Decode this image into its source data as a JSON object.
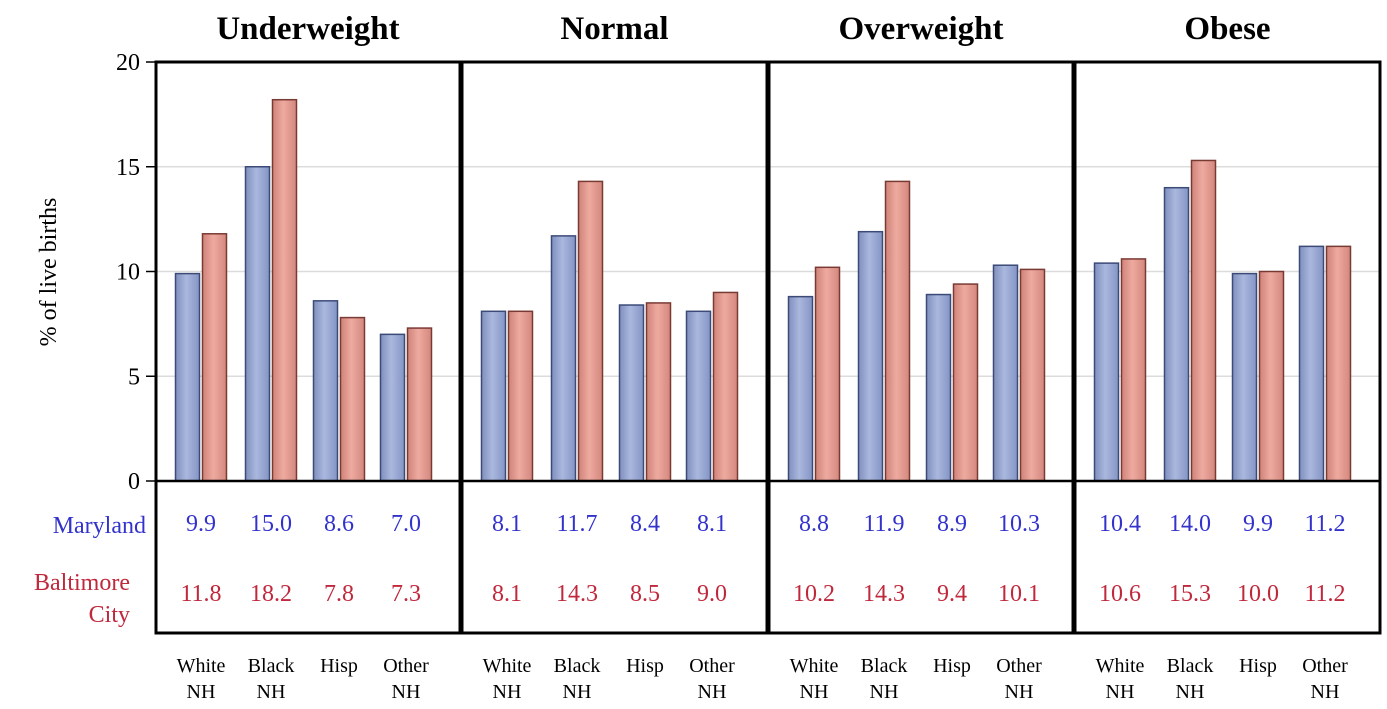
{
  "chart_data": {
    "type": "bar",
    "ylabel": "% of live births",
    "ylim": [
      0,
      20
    ],
    "yticks": [
      0,
      5,
      10,
      15,
      20
    ],
    "grid": true,
    "categories": [
      {
        "line1": "White",
        "line2": "NH"
      },
      {
        "line1": "Black",
        "line2": "NH"
      },
      {
        "line1": "Hisp",
        "line2": ""
      },
      {
        "line1": "Other",
        "line2": "NH"
      }
    ],
    "series_styles": [
      {
        "name": "Maryland",
        "fill": "#9aaad4",
        "stroke": "#3c4a78",
        "text_color": "#3333cc"
      },
      {
        "name": "Baltimore City",
        "label_line1": "Baltimore",
        "label_line2": "City",
        "fill": "#e49a90",
        "stroke": "#7a3a34",
        "text_color": "#c0283c"
      }
    ],
    "panels": [
      {
        "title": "Underweight",
        "series": [
          {
            "values": [
              9.9,
              15.0,
              8.6,
              7.0
            ],
            "labels": [
              "9.9",
              "15.0",
              "8.6",
              "7.0"
            ]
          },
          {
            "values": [
              11.8,
              18.2,
              7.8,
              7.3
            ],
            "labels": [
              "11.8",
              "18.2",
              "7.8",
              "7.3"
            ]
          }
        ]
      },
      {
        "title": "Normal",
        "series": [
          {
            "values": [
              8.1,
              11.7,
              8.4,
              8.1
            ],
            "labels": [
              "8.1",
              "11.7",
              "8.4",
              "8.1"
            ]
          },
          {
            "values": [
              8.1,
              14.3,
              8.5,
              9.0
            ],
            "labels": [
              "8.1",
              "14.3",
              "8.5",
              "9.0"
            ]
          }
        ]
      },
      {
        "title": "Overweight",
        "series": [
          {
            "values": [
              8.8,
              11.9,
              8.9,
              10.3
            ],
            "labels": [
              "8.8",
              "11.9",
              "8.9",
              "10.3"
            ]
          },
          {
            "values": [
              10.2,
              14.3,
              9.4,
              10.1
            ],
            "labels": [
              "10.2",
              "14.3",
              "9.4",
              "10.1"
            ]
          }
        ]
      },
      {
        "title": "Obese",
        "series": [
          {
            "values": [
              10.4,
              14.0,
              9.9,
              11.2
            ],
            "labels": [
              "10.4",
              "14.0",
              "9.9",
              "11.2"
            ]
          },
          {
            "values": [
              10.6,
              15.3,
              10.0,
              11.2
            ],
            "labels": [
              "10.6",
              "15.3",
              "10.0",
              "11.2"
            ]
          }
        ]
      }
    ]
  }
}
